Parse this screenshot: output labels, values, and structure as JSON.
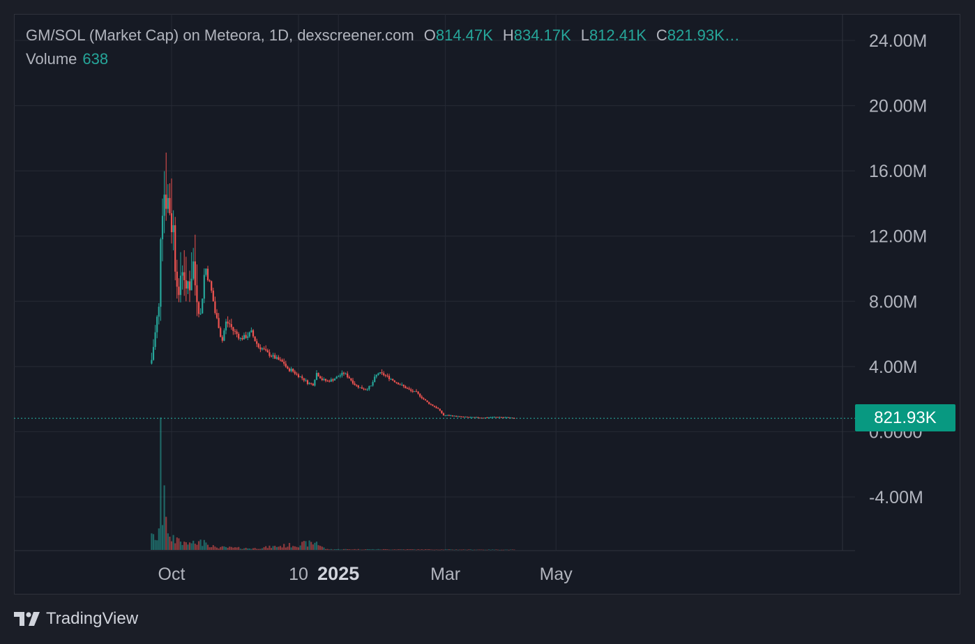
{
  "legend": {
    "title": "GM/SOL (Market Cap) on Meteora, 1D, dexscreener.com",
    "o_label": "O",
    "o_value": "814.47K",
    "h_label": "H",
    "h_value": "834.17K",
    "l_label": "L",
    "l_value": "812.41K",
    "c_label": "C",
    "c_value": "821.93K…",
    "volume_label": "Volume",
    "volume_value": "638"
  },
  "last_price_label": "821.93K",
  "brand": "TradingView",
  "colors": {
    "up": "#26a69a",
    "down": "#ef5350",
    "grid": "#262a35",
    "axis_text": "#b2b5be",
    "background": "#161a24",
    "badge": "#089981"
  },
  "chart_data": {
    "type": "candlestick",
    "title": "GM/SOL (Market Cap) on Meteora, 1D, dexscreener.com",
    "y_unit": "market cap",
    "ylim": [
      -7200000,
      24400000
    ],
    "y_ticks": [
      {
        "value": 24000000,
        "label": "24.00M"
      },
      {
        "value": 20000000,
        "label": "20.00M"
      },
      {
        "value": 16000000,
        "label": "16.00M"
      },
      {
        "value": 12000000,
        "label": "12.00M"
      },
      {
        "value": 8000000,
        "label": "8.00M"
      },
      {
        "value": 4000000,
        "label": "4.00M"
      },
      {
        "value": 0,
        "label": "0.0000"
      },
      {
        "value": -4000000,
        "label": "-4.00M"
      }
    ],
    "x_ticks": [
      {
        "date": "2024-10-01",
        "label": "Oct",
        "bold": false
      },
      {
        "date": "2024-12-10",
        "label": "10",
        "bold": false
      },
      {
        "date": "2025-01-01",
        "label": "2025",
        "bold": true
      },
      {
        "date": "2025-03-01",
        "label": "Mar",
        "bold": false
      },
      {
        "date": "2025-05-01",
        "label": "May",
        "bold": false
      }
    ],
    "last_price": 821930,
    "close_keypoints": [
      [
        "2024-09-20",
        4400000.0
      ],
      [
        "2024-09-21",
        5200000.0
      ],
      [
        "2024-09-22",
        6100000.0
      ],
      [
        "2024-09-23",
        7000000.0
      ],
      [
        "2024-09-24",
        7600000.0
      ],
      [
        "2024-09-25",
        12000000.0
      ],
      [
        "2024-09-26",
        13500000.0
      ],
      [
        "2024-09-27",
        14600000.0
      ],
      [
        "2024-09-28",
        13900000.0
      ],
      [
        "2024-09-29",
        14300000.0
      ],
      [
        "2024-09-30",
        13500000.0
      ],
      [
        "2024-10-01",
        12400000.0
      ],
      [
        "2024-10-02",
        12600000.0
      ],
      [
        "2024-10-03",
        10000000.0
      ],
      [
        "2024-10-04",
        9100000.0
      ],
      [
        "2024-10-05",
        8200000.0
      ],
      [
        "2024-10-06",
        9600000.0
      ],
      [
        "2024-10-07",
        9900000.0
      ],
      [
        "2024-10-08",
        9400000.0
      ],
      [
        "2024-10-09",
        8600000.0
      ],
      [
        "2024-10-10",
        9200000.0
      ],
      [
        "2024-10-11",
        8800000.0
      ],
      [
        "2024-10-12",
        9500000.0
      ],
      [
        "2024-10-13",
        10400000.0
      ],
      [
        "2024-10-14",
        9000000.0
      ],
      [
        "2024-10-15",
        8100000.0
      ],
      [
        "2024-10-16",
        7400000.0
      ],
      [
        "2024-10-17",
        7200000.0
      ],
      [
        "2024-10-18",
        8300000.0
      ],
      [
        "2024-10-19",
        9600000.0
      ],
      [
        "2024-10-20",
        10000000.0
      ],
      [
        "2024-10-21",
        9500000.0
      ],
      [
        "2024-10-22",
        9100000.0
      ],
      [
        "2024-10-23",
        8600000.0
      ],
      [
        "2024-10-24",
        8000000.0
      ],
      [
        "2024-10-25",
        7300000.0
      ],
      [
        "2024-10-26",
        6900000.0
      ],
      [
        "2024-10-27",
        6500000.0
      ],
      [
        "2024-10-28",
        5900000.0
      ],
      [
        "2024-10-29",
        5600000.0
      ],
      [
        "2024-10-30",
        6200000.0
      ],
      [
        "2024-10-31",
        6700000.0
      ],
      [
        "2024-11-02",
        6600000.0
      ],
      [
        "2024-11-04",
        6200000.0
      ],
      [
        "2024-11-06",
        6000000.0
      ],
      [
        "2024-11-08",
        5700000.0
      ],
      [
        "2024-11-10",
        5800000.0
      ],
      [
        "2024-11-12",
        5900000.0
      ],
      [
        "2024-11-14",
        6100000.0
      ],
      [
        "2024-11-16",
        5600000.0
      ],
      [
        "2024-11-18",
        5200000.0
      ],
      [
        "2024-11-20",
        5100000.0
      ],
      [
        "2024-11-23",
        4800000.0
      ],
      [
        "2024-11-26",
        4600000.0
      ],
      [
        "2024-11-29",
        4400000.0
      ],
      [
        "2024-12-02",
        4200000.0
      ],
      [
        "2024-12-04",
        3800000.0
      ],
      [
        "2024-12-06",
        3800000.0
      ],
      [
        "2024-12-09",
        3500000.0
      ],
      [
        "2024-12-12",
        3300000.0
      ],
      [
        "2024-12-15",
        3000000.0
      ],
      [
        "2024-12-18",
        2900000.0
      ],
      [
        "2024-12-20",
        3600000.0
      ],
      [
        "2024-12-23",
        3200000.0
      ],
      [
        "2024-12-26",
        3100000.0
      ],
      [
        "2024-12-29",
        3200000.0
      ],
      [
        "2025-01-01",
        3400000.0
      ],
      [
        "2025-01-04",
        3600000.0
      ],
      [
        "2025-01-07",
        3300000.0
      ],
      [
        "2025-01-10",
        2900000.0
      ],
      [
        "2025-01-13",
        2700000.0
      ],
      [
        "2025-01-16",
        2600000.0
      ],
      [
        "2025-01-19",
        2800000.0
      ],
      [
        "2025-01-21",
        3300000.0
      ],
      [
        "2025-01-23",
        3600000.0
      ],
      [
        "2025-01-26",
        3500000.0
      ],
      [
        "2025-01-29",
        3300000.0
      ],
      [
        "2025-02-01",
        3100000.0
      ],
      [
        "2025-02-04",
        2900000.0
      ],
      [
        "2025-02-07",
        2700000.0
      ],
      [
        "2025-02-10",
        2500000.0
      ],
      [
        "2025-02-13",
        2400000.0
      ],
      [
        "2025-02-16",
        2100000.0
      ],
      [
        "2025-02-19",
        1800000.0
      ],
      [
        "2025-02-22",
        1600000.0
      ],
      [
        "2025-02-25",
        1400000.0
      ],
      [
        "2025-02-28",
        1000000.0
      ],
      [
        "2025-03-03",
        1000000.0
      ],
      [
        "2025-03-08",
        930000.0
      ],
      [
        "2025-03-15",
        880000.0
      ],
      [
        "2025-03-22",
        860000.0
      ],
      [
        "2025-03-29",
        900000.0
      ],
      [
        "2025-04-05",
        870000.0
      ],
      [
        "2025-04-08",
        820000.0
      ]
    ],
    "volume_keypoints": [
      [
        "2024-09-20",
        1000000.0
      ],
      [
        "2024-09-22",
        600000.0
      ],
      [
        "2024-09-24",
        1300000.0
      ],
      [
        "2024-09-25",
        8000000.0
      ],
      [
        "2024-09-26",
        1500000.0
      ],
      [
        "2024-09-27",
        3900000.0
      ],
      [
        "2024-09-28",
        2000000.0
      ],
      [
        "2024-09-29",
        1000000.0
      ],
      [
        "2024-09-30",
        800000.0
      ],
      [
        "2024-10-02",
        900000.0
      ],
      [
        "2024-10-05",
        700000.0
      ],
      [
        "2024-10-08",
        500000.0
      ],
      [
        "2024-10-12",
        400000.0
      ],
      [
        "2024-10-19",
        600000.0
      ],
      [
        "2024-10-25",
        200000.0
      ],
      [
        "2024-11-15",
        100000.0
      ],
      [
        "2024-12-20",
        500000.0
      ],
      [
        "2024-12-25",
        50000.0
      ],
      [
        "2025-04-08",
        20000.0
      ]
    ]
  }
}
